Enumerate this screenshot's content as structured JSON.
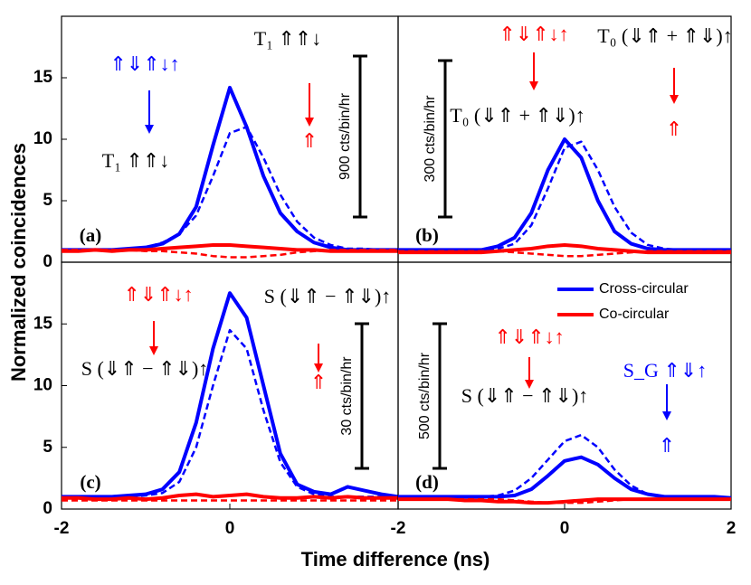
{
  "figure": {
    "xlabel": "Time difference (ns)",
    "ylabel": "Normalized coincidences"
  },
  "chart_data": [
    {
      "type": "line",
      "label": "(a)",
      "scale_label": "900 cts/bin/hr",
      "xlim": [
        -2,
        2
      ],
      "ylim": [
        0,
        20
      ],
      "yticks": [
        0,
        5,
        10,
        15
      ],
      "x": [
        -2,
        -1.8,
        -1.6,
        -1.4,
        -1.2,
        -1,
        -0.8,
        -0.6,
        -0.4,
        -0.2,
        0,
        0.2,
        0.4,
        0.6,
        0.8,
        1,
        1.2,
        1.4,
        1.6,
        1.8,
        2
      ],
      "series": [
        {
          "color": "#0000ff",
          "style": "solid",
          "values": [
            1,
            1,
            1,
            1,
            1.1,
            1.2,
            1.5,
            2.3,
            4.5,
            9.5,
            14.2,
            11,
            7,
            4,
            2.5,
            1.6,
            1.2,
            1,
            1,
            1,
            1
          ]
        },
        {
          "color": "#0000ff",
          "style": "dashed",
          "values": [
            1,
            1,
            1,
            1,
            1.1,
            1.2,
            1.6,
            2.3,
            3.8,
            7,
            10.5,
            11,
            8.5,
            5.5,
            3.3,
            2,
            1.4,
            1.1,
            1.1,
            1,
            1
          ]
        },
        {
          "color": "#ff0000",
          "style": "solid",
          "values": [
            0.9,
            0.9,
            1,
            0.9,
            1,
            1,
            1.1,
            1.2,
            1.3,
            1.4,
            1.4,
            1.3,
            1.2,
            1.1,
            1,
            1,
            0.9,
            0.9,
            0.9,
            0.9,
            0.9
          ]
        },
        {
          "color": "#ff0000",
          "style": "dashed",
          "values": [
            1,
            1,
            1,
            1,
            1,
            0.9,
            0.9,
            0.8,
            0.7,
            0.5,
            0.4,
            0.4,
            0.5,
            0.6,
            0.8,
            0.9,
            1,
            1,
            1,
            1,
            1
          ]
        }
      ],
      "annotations": [
        {
          "text": "⇑⇓⇑↓↑",
          "color": "#0000ff"
        },
        {
          "text": "T₁ ⇑⇑↓",
          "color": "#000000"
        },
        {
          "text": "T₁ ⇑⇑↓",
          "color": "#000000"
        },
        {
          "text": "⇑",
          "color": "#ff0000"
        }
      ]
    },
    {
      "type": "line",
      "label": "(b)",
      "scale_label": "300 cts/bin/hr",
      "xlim": [
        -2,
        2
      ],
      "ylim": [
        0,
        20
      ],
      "x": [
        -2,
        -1.8,
        -1.6,
        -1.4,
        -1.2,
        -1,
        -0.8,
        -0.6,
        -0.4,
        -0.2,
        0,
        0.2,
        0.4,
        0.6,
        0.8,
        1,
        1.2,
        1.4,
        1.6,
        1.8,
        2
      ],
      "series": [
        {
          "color": "#0000ff",
          "style": "solid",
          "values": [
            1,
            1,
            1,
            1,
            1,
            1,
            1.3,
            2,
            4,
            7.5,
            10,
            8.5,
            5,
            2.5,
            1.5,
            1.1,
            1,
            1,
            1,
            1,
            1
          ]
        },
        {
          "color": "#0000ff",
          "style": "dashed",
          "values": [
            1,
            1,
            1,
            1,
            1,
            1,
            1.1,
            1.5,
            3,
            6,
            9.3,
            9.8,
            7.5,
            4.5,
            2.4,
            1.4,
            1.1,
            1,
            1,
            1,
            1
          ]
        },
        {
          "color": "#ff0000",
          "style": "solid",
          "values": [
            0.8,
            0.8,
            0.8,
            0.8,
            0.8,
            0.8,
            0.9,
            1,
            1.1,
            1.3,
            1.4,
            1.3,
            1.1,
            1,
            0.9,
            0.8,
            0.8,
            0.8,
            0.8,
            0.8,
            0.8
          ]
        },
        {
          "color": "#ff0000",
          "style": "dashed",
          "values": [
            0.9,
            0.9,
            0.9,
            0.9,
            0.9,
            0.9,
            0.9,
            0.8,
            0.7,
            0.6,
            0.5,
            0.5,
            0.6,
            0.7,
            0.8,
            0.9,
            0.9,
            0.9,
            0.9,
            0.9,
            0.9
          ]
        }
      ],
      "annotations": [
        {
          "text": "⇑⇓⇑↓↑",
          "color": "#ff0000"
        },
        {
          "text": "T₀ (⇓⇑ + ⇑⇓)↑",
          "color": "#000000"
        },
        {
          "text": "T₀ (⇓⇑ + ⇑⇓)↑",
          "color": "#000000"
        },
        {
          "text": "⇑",
          "color": "#ff0000"
        }
      ]
    },
    {
      "type": "line",
      "label": "(c)",
      "scale_label": "30 cts/bin/hr",
      "xlim": [
        -2,
        2
      ],
      "ylim": [
        0,
        20
      ],
      "yticks": [
        0,
        5,
        10,
        15
      ],
      "xticks": [
        -2,
        0
      ],
      "x": [
        -2,
        -1.8,
        -1.6,
        -1.4,
        -1.2,
        -1,
        -0.8,
        -0.6,
        -0.4,
        -0.2,
        0,
        0.2,
        0.4,
        0.6,
        0.8,
        1,
        1.2,
        1.4,
        1.6,
        1.8,
        2
      ],
      "series": [
        {
          "color": "#0000ff",
          "style": "solid",
          "values": [
            1,
            1,
            1,
            1,
            1.1,
            1.2,
            1.6,
            3,
            7,
            13,
            17.5,
            15.5,
            10,
            4.5,
            2,
            1.4,
            1.2,
            1.8,
            1.5,
            1.2,
            1
          ]
        },
        {
          "color": "#0000ff",
          "style": "dashed",
          "values": [
            0.9,
            0.9,
            0.9,
            0.9,
            1,
            1.1,
            1.3,
            2.2,
            5,
            10,
            14.5,
            13,
            8,
            3.8,
            1.8,
            1.2,
            1,
            1,
            1,
            1,
            1
          ]
        },
        {
          "color": "#ff0000",
          "style": "solid",
          "values": [
            0.9,
            0.9,
            0.8,
            0.8,
            0.9,
            0.8,
            0.9,
            1.1,
            1.2,
            1,
            1.1,
            1.2,
            1,
            0.9,
            0.9,
            1,
            0.9,
            1,
            0.9,
            0.9,
            0.9
          ]
        },
        {
          "color": "#ff0000",
          "style": "dashed",
          "values": [
            0.7,
            0.7,
            0.7,
            0.7,
            0.7,
            0.7,
            0.7,
            0.7,
            0.7,
            0.7,
            0.7,
            0.7,
            0.7,
            0.7,
            0.7,
            0.7,
            0.7,
            0.7,
            0.7,
            0.7,
            0.7
          ]
        }
      ],
      "annotations": [
        {
          "text": "⇑⇓⇑↓↑",
          "color": "#ff0000"
        },
        {
          "text": "S (⇓⇑ − ⇑⇓)↑",
          "color": "#000000"
        },
        {
          "text": "S (⇓⇑ − ⇑⇓)↑",
          "color": "#000000"
        },
        {
          "text": "⇑",
          "color": "#ff0000"
        }
      ]
    },
    {
      "type": "line",
      "label": "(d)",
      "scale_label": "500 cts/bin/hr",
      "legend": "upper right",
      "xlim": [
        -2,
        2
      ],
      "ylim": [
        0,
        20
      ],
      "xticks": [
        -2,
        0,
        2
      ],
      "x": [
        -2,
        -1.8,
        -1.6,
        -1.4,
        -1.2,
        -1,
        -0.8,
        -0.6,
        -0.4,
        -0.2,
        0,
        0.2,
        0.4,
        0.6,
        0.8,
        1,
        1.2,
        1.4,
        1.6,
        1.8,
        2
      ],
      "series": [
        {
          "name": "Cross-circular",
          "color": "#0000ff",
          "style": "solid",
          "values": [
            1,
            1,
            1,
            1,
            1,
            1,
            1,
            1.1,
            1.6,
            2.7,
            3.9,
            4.2,
            3.6,
            2.5,
            1.6,
            1.2,
            1,
            1,
            1,
            1,
            0.9
          ]
        },
        {
          "color": "#0000ff",
          "style": "dashed",
          "values": [
            0.9,
            0.9,
            0.9,
            0.9,
            0.9,
            1,
            1.1,
            1.5,
            2.5,
            4,
            5.5,
            6,
            5,
            3.2,
            1.9,
            1.2,
            1,
            0.9,
            0.9,
            0.9,
            0.9
          ]
        },
        {
          "name": "Co-circular",
          "color": "#ff0000",
          "style": "solid",
          "values": [
            0.8,
            0.8,
            0.8,
            0.8,
            0.7,
            0.7,
            0.6,
            0.6,
            0.5,
            0.5,
            0.6,
            0.7,
            0.8,
            0.8,
            0.8,
            0.8,
            0.8,
            0.8,
            0.8,
            0.8,
            0.8
          ]
        },
        {
          "color": "#ff0000",
          "style": "dashed",
          "values": [
            0.8,
            0.8,
            0.8,
            0.8,
            0.8,
            0.8,
            0.8,
            0.7,
            0.6,
            0.5,
            0.5,
            0.5,
            0.6,
            0.7,
            0.8,
            0.8,
            0.8,
            0.8,
            0.8,
            0.8,
            0.8
          ]
        }
      ],
      "annotations": [
        {
          "text": "⇑⇓⇑↓↑",
          "color": "#ff0000"
        },
        {
          "text": "S (⇓⇑ − ⇑⇓)↑",
          "color": "#000000"
        },
        {
          "text": "S_G ⇑⇓↑",
          "color": "#0000ff"
        },
        {
          "text": "⇑",
          "color": "#0000ff"
        }
      ]
    }
  ]
}
